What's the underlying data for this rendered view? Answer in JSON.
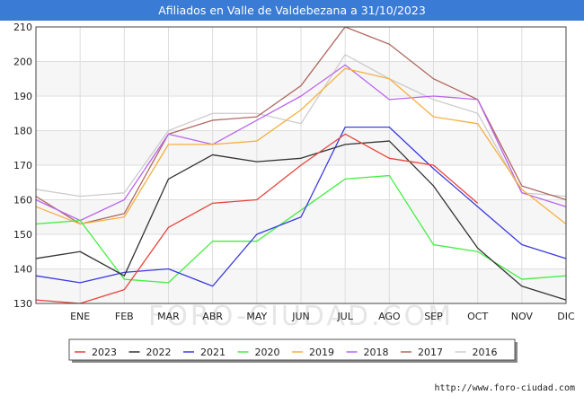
{
  "page": {
    "footer_url": "http://www.foro-ciudad.com",
    "watermark": "FORO-CIUDAD.COM"
  },
  "chart_data": {
    "type": "line",
    "title": "Afiliados en Valle de Valdebezana a 31/10/2023",
    "xlabel": "",
    "ylabel": "",
    "categories": [
      "",
      "ENE",
      "FEB",
      "MAR",
      "ABR",
      "MAY",
      "JUN",
      "JUL",
      "AGO",
      "SEP",
      "OCT",
      "NOV",
      "DIC"
    ],
    "ylim": [
      130,
      210
    ],
    "yticks": [
      130,
      140,
      150,
      160,
      170,
      180,
      190,
      200,
      210
    ],
    "grid": true,
    "legend_position": "bottom",
    "series": [
      {
        "name": "2023",
        "color": "#e8433a",
        "values": [
          131,
          130,
          134,
          152,
          159,
          160,
          170,
          179,
          172,
          170,
          159,
          null,
          null
        ]
      },
      {
        "name": "2022",
        "color": "#333333",
        "values": [
          143,
          145,
          138,
          166,
          173,
          171,
          172,
          176,
          177,
          164,
          146,
          135,
          131
        ]
      },
      {
        "name": "2021",
        "color": "#3a3ae0",
        "values": [
          138,
          136,
          139,
          140,
          135,
          150,
          155,
          181,
          181,
          169,
          158,
          147,
          143
        ]
      },
      {
        "name": "2020",
        "color": "#44ee44",
        "values": [
          153,
          154,
          137,
          136,
          148,
          148,
          157,
          166,
          167,
          147,
          145,
          137,
          138
        ]
      },
      {
        "name": "2019",
        "color": "#f5b041",
        "values": [
          158,
          153,
          155,
          176,
          176,
          177,
          186,
          198,
          195,
          184,
          182,
          163,
          153
        ]
      },
      {
        "name": "2018",
        "color": "#bb66ee",
        "values": [
          160,
          154,
          160,
          179,
          176,
          183,
          190,
          199,
          189,
          190,
          189,
          162,
          158
        ]
      },
      {
        "name": "2017",
        "color": "#b06a60",
        "values": [
          161,
          153,
          156,
          179,
          183,
          184,
          193,
          210,
          205,
          195,
          189,
          164,
          160
        ]
      },
      {
        "name": "2016",
        "color": "#cccccc",
        "values": [
          163,
          161,
          162,
          180,
          185,
          185,
          182,
          202,
          195,
          189,
          185,
          162,
          161
        ]
      }
    ]
  }
}
